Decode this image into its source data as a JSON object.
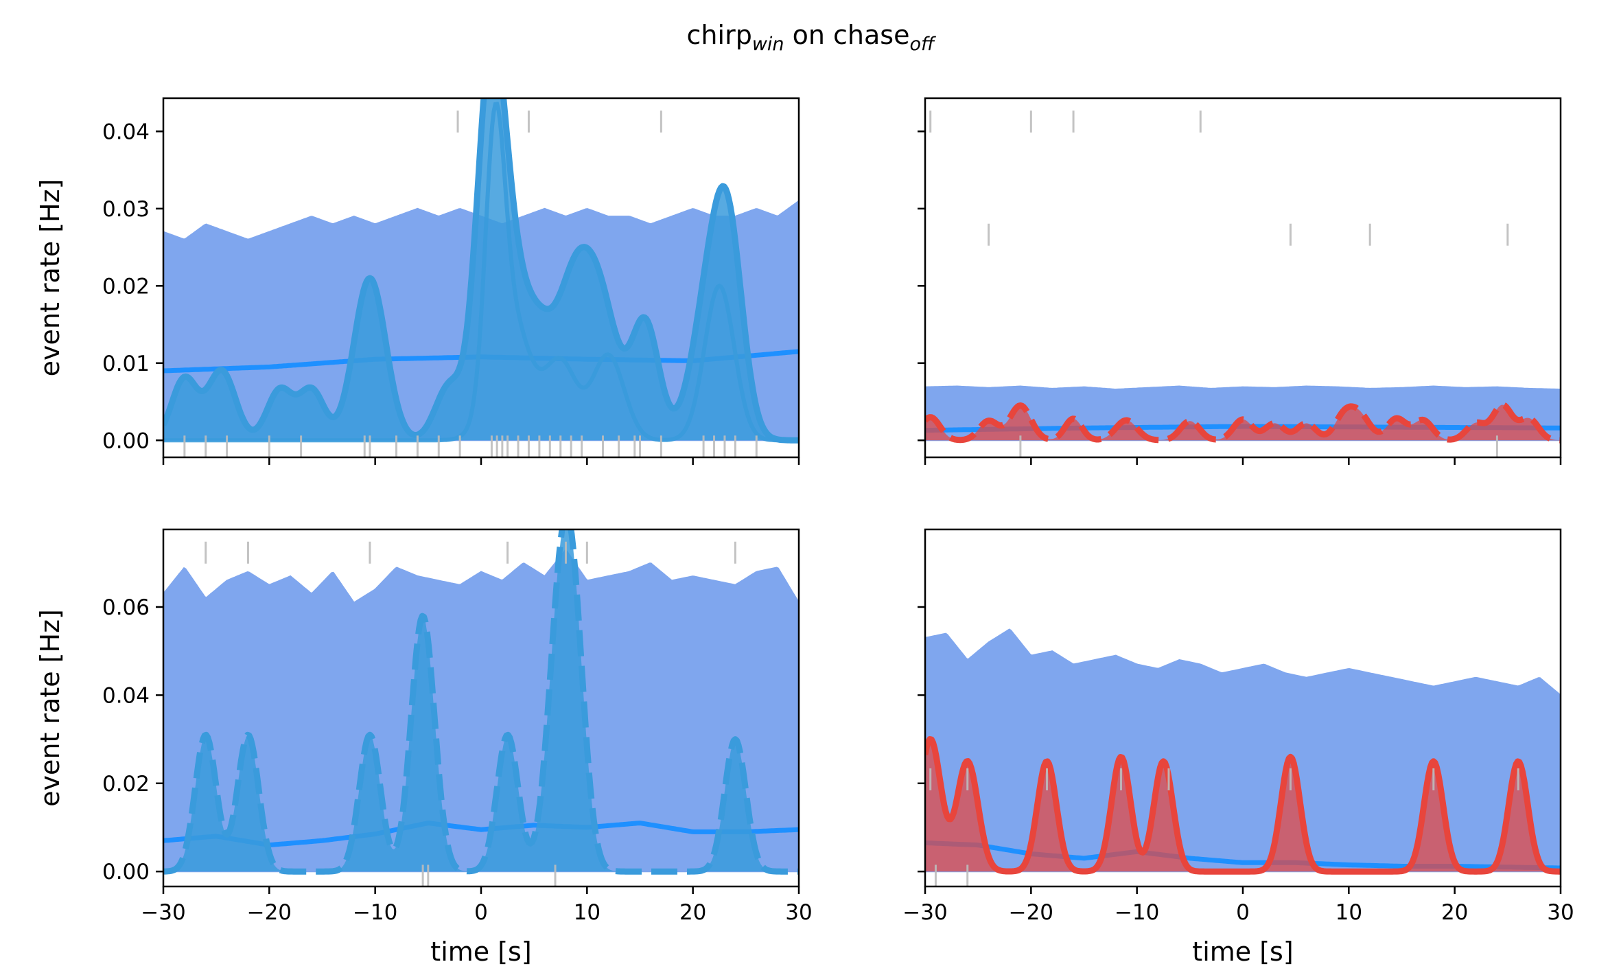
{
  "figure": {
    "title_main_1": "chirp",
    "title_sub_1": "win",
    "title_main_2": " on chase",
    "title_sub_2": "off"
  },
  "colors": {
    "band": "#7fa6ee",
    "mean_line": "#1e90ff",
    "fish1": "#3a9bdc",
    "fish2": "#e8453c",
    "event_tick": "#bdbdbd"
  },
  "chart_data": [
    {
      "type": "area",
      "xlabel": "",
      "ylabel": "event rate [Hz]",
      "xlim": [
        -30,
        30
      ],
      "ylim": [
        -0.0022,
        0.0443
      ],
      "xticks": [
        -30,
        -20,
        -10,
        0,
        10,
        20,
        30
      ],
      "yticks": [
        0.0,
        0.01,
        0.02,
        0.03,
        0.04
      ],
      "ytick_labels": [
        "0.00",
        "0.01",
        "0.02",
        "0.03",
        "0.04"
      ],
      "show_xtick_labels": false,
      "show_ytick_labels": true,
      "band_lower": {
        "x": [
          -30,
          30
        ],
        "y": [
          0.0,
          0.0
        ]
      },
      "band_upper": {
        "x": [
          -30,
          -28,
          -26,
          -24,
          -22,
          -20,
          -18,
          -16,
          -14,
          -12,
          -10,
          -8,
          -6,
          -4,
          -2,
          0,
          2,
          4,
          6,
          8,
          10,
          12,
          14,
          16,
          18,
          20,
          22,
          24,
          26,
          28,
          30
        ],
        "y": [
          0.027,
          0.026,
          0.028,
          0.027,
          0.026,
          0.027,
          0.028,
          0.029,
          0.028,
          0.029,
          0.028,
          0.029,
          0.03,
          0.029,
          0.03,
          0.029,
          0.028,
          0.029,
          0.03,
          0.029,
          0.03,
          0.029,
          0.029,
          0.028,
          0.029,
          0.03,
          0.029,
          0.029,
          0.03,
          0.029,
          0.031
        ]
      },
      "mean": {
        "x": [
          -30,
          -20,
          -10,
          0,
          10,
          20,
          30
        ],
        "y": [
          0.009,
          0.0095,
          0.0105,
          0.0108,
          0.0105,
          0.0103,
          0.0115
        ]
      },
      "bumps": {
        "centers": [
          -28,
          -24.5,
          -19,
          -16,
          -10.5,
          -3,
          0.8,
          2.5,
          5.5,
          8.5,
          11,
          15.5,
          22,
          23.5
        ],
        "widths": [
          1.2,
          1.3,
          1.2,
          1.2,
          1.5,
          1.3,
          1.3,
          1.6,
          1.5,
          1.5,
          1.8,
          1.3,
          1.8,
          1.3
        ],
        "amps": [
          0.008,
          0.009,
          0.0065,
          0.0065,
          0.021,
          0.007,
          0.04,
          0.02,
          0.012,
          0.014,
          0.019,
          0.015,
          0.022,
          0.015
        ]
      },
      "thin_bumps": {
        "centers": [
          1.3,
          2.8,
          7.5,
          12,
          22.5
        ],
        "widths": [
          0.9,
          1.8,
          1.5,
          1.5,
          1.4
        ],
        "amps": [
          0.032,
          0.016,
          0.01,
          0.011,
          0.02
        ]
      },
      "fish_color": "fish1",
      "dashed": false,
      "top_events": [
        -2.2,
        4.5,
        17
      ],
      "mid_events": [],
      "bottom_events": [
        -28,
        -26,
        -24,
        -20,
        -17,
        -11,
        -10.5,
        -8,
        -6,
        -4,
        -2,
        1,
        1.5,
        2,
        2.5,
        3.5,
        4.5,
        5.5,
        6.5,
        7.5,
        8.5,
        9.5,
        11.5,
        13,
        14.5,
        15,
        17,
        21,
        22,
        23,
        24,
        26
      ]
    },
    {
      "type": "area",
      "xlabel": "",
      "ylabel": "",
      "xlim": [
        -30,
        30
      ],
      "ylim": [
        -0.0022,
        0.0443
      ],
      "xticks": [
        -30,
        -20,
        -10,
        0,
        10,
        20,
        30
      ],
      "yticks": [
        0.0,
        0.01,
        0.02,
        0.03,
        0.04
      ],
      "ytick_labels": [
        "0.00",
        "0.01",
        "0.02",
        "0.03",
        "0.04"
      ],
      "show_xtick_labels": false,
      "show_ytick_labels": false,
      "band_lower": {
        "x": [
          -30,
          30
        ],
        "y": [
          0.0,
          0.0
        ]
      },
      "band_upper": {
        "x": [
          -30,
          -27,
          -24,
          -21,
          -18,
          -15,
          -12,
          -9,
          -6,
          -3,
          0,
          3,
          6,
          9,
          12,
          15,
          18,
          21,
          24,
          27,
          30
        ],
        "y": [
          0.0069,
          0.007,
          0.0068,
          0.007,
          0.0067,
          0.0069,
          0.0066,
          0.0068,
          0.007,
          0.0067,
          0.0069,
          0.0068,
          0.007,
          0.0069,
          0.0067,
          0.0068,
          0.007,
          0.0068,
          0.0069,
          0.0067,
          0.0066
        ]
      },
      "mean": {
        "x": [
          -30,
          -15,
          0,
          15,
          30
        ],
        "y": [
          0.0013,
          0.0016,
          0.0018,
          0.0017,
          0.0016
        ]
      },
      "bumps": {
        "centers": [
          -29.5,
          -24,
          -21,
          -16,
          -11,
          -5,
          0,
          3,
          6,
          9.5,
          11,
          14.5,
          17,
          22,
          24.5,
          27
        ],
        "widths": [
          0.9,
          0.9,
          1.0,
          0.8,
          1.0,
          0.9,
          0.9,
          0.9,
          0.9,
          0.9,
          1.0,
          0.9,
          0.9,
          0.9,
          0.9,
          0.9
        ],
        "amps": [
          0.003,
          0.0025,
          0.0045,
          0.0028,
          0.0026,
          0.0025,
          0.0027,
          0.0022,
          0.0022,
          0.0028,
          0.0032,
          0.0028,
          0.0026,
          0.0022,
          0.0045,
          0.0028
        ]
      },
      "thin_bumps": {
        "centers": [],
        "widths": [],
        "amps": []
      },
      "fish_color": "fish2",
      "dashed": true,
      "top_events": [
        -29.5,
        -20,
        -16,
        -4
      ],
      "mid_events": [
        -24,
        4.5,
        12,
        25
      ],
      "bottom_events": [
        -21,
        24
      ]
    },
    {
      "type": "area",
      "xlabel": "time [s]",
      "ylabel": "event rate [Hz]",
      "xlim": [
        -30,
        30
      ],
      "ylim": [
        -0.0034,
        0.0776
      ],
      "xticks": [
        -30,
        -20,
        -10,
        0,
        10,
        20,
        30
      ],
      "yticks": [
        0.0,
        0.02,
        0.04,
        0.06
      ],
      "ytick_labels": [
        "0.00",
        "0.02",
        "0.04",
        "0.06"
      ],
      "xtick_labels": [
        "−30",
        "−20",
        "−10",
        "0",
        "10",
        "20",
        "30"
      ],
      "show_xtick_labels": true,
      "show_ytick_labels": true,
      "band_lower": {
        "x": [
          -30,
          30
        ],
        "y": [
          0.0,
          0.0
        ]
      },
      "band_upper": {
        "x": [
          -30,
          -28,
          -26,
          -24,
          -22,
          -20,
          -18,
          -16,
          -14,
          -12,
          -10,
          -8,
          -6,
          -4,
          -2,
          0,
          2,
          4,
          6,
          8,
          10,
          12,
          14,
          16,
          18,
          20,
          22,
          24,
          26,
          28,
          30
        ],
        "y": [
          0.063,
          0.069,
          0.062,
          0.066,
          0.068,
          0.065,
          0.067,
          0.063,
          0.068,
          0.061,
          0.064,
          0.069,
          0.067,
          0.066,
          0.065,
          0.068,
          0.066,
          0.07,
          0.067,
          0.073,
          0.066,
          0.067,
          0.068,
          0.07,
          0.066,
          0.067,
          0.066,
          0.065,
          0.068,
          0.069,
          0.061
        ]
      },
      "mean": {
        "x": [
          -30,
          -25,
          -20,
          -15,
          -10,
          -5,
          0,
          5,
          10,
          15,
          20,
          25,
          30
        ],
        "y": [
          0.007,
          0.008,
          0.006,
          0.007,
          0.0085,
          0.011,
          0.0095,
          0.0105,
          0.01,
          0.011,
          0.009,
          0.009,
          0.0095
        ]
      },
      "bumps": {
        "centers": [
          -26,
          -22,
          -10.5,
          -5.5,
          2.5,
          7.5,
          8.8,
          24
        ],
        "widths": [
          1.0,
          1.0,
          1.0,
          1.1,
          1.0,
          1.2,
          1.1,
          1.0
        ],
        "amps": [
          0.031,
          0.031,
          0.031,
          0.058,
          0.031,
          0.055,
          0.04,
          0.03
        ]
      },
      "thin_bumps": {
        "centers": [],
        "widths": [],
        "amps": []
      },
      "fish_color": "fish1",
      "dashed": true,
      "top_events": [
        -26,
        -22,
        -10.5,
        2.5,
        8,
        10,
        24
      ],
      "mid_events": [],
      "bottom_events": [
        -5.5,
        -5,
        7
      ]
    },
    {
      "type": "area",
      "xlabel": "time [s]",
      "ylabel": "",
      "xlim": [
        -30,
        30
      ],
      "ylim": [
        -0.0034,
        0.0776
      ],
      "xticks": [
        -30,
        -20,
        -10,
        0,
        10,
        20,
        30
      ],
      "yticks": [
        0.0,
        0.02,
        0.04,
        0.06
      ],
      "ytick_labels": [
        "0.00",
        "0.02",
        "0.04",
        "0.06"
      ],
      "xtick_labels": [
        "−30",
        "−20",
        "−10",
        "0",
        "10",
        "20",
        "30"
      ],
      "show_xtick_labels": true,
      "show_ytick_labels": false,
      "band_lower": {
        "x": [
          -30,
          30
        ],
        "y": [
          0.0,
          0.0
        ]
      },
      "band_upper": {
        "x": [
          -30,
          -28,
          -26,
          -24,
          -22,
          -20,
          -18,
          -16,
          -14,
          -12,
          -10,
          -8,
          -6,
          -4,
          -2,
          0,
          2,
          4,
          6,
          8,
          10,
          12,
          14,
          16,
          18,
          20,
          22,
          24,
          26,
          28,
          30
        ],
        "y": [
          0.053,
          0.054,
          0.048,
          0.052,
          0.055,
          0.049,
          0.05,
          0.047,
          0.048,
          0.049,
          0.047,
          0.046,
          0.048,
          0.047,
          0.045,
          0.046,
          0.047,
          0.045,
          0.044,
          0.045,
          0.046,
          0.045,
          0.044,
          0.043,
          0.042,
          0.043,
          0.044,
          0.043,
          0.042,
          0.044,
          0.04
        ]
      },
      "mean": {
        "x": [
          -30,
          -25,
          -20,
          -15,
          -10,
          -5,
          0,
          5,
          10,
          15,
          20,
          25,
          30
        ],
        "y": [
          0.0065,
          0.006,
          0.004,
          0.003,
          0.0045,
          0.003,
          0.002,
          0.002,
          0.0015,
          0.0012,
          0.0012,
          0.001,
          0.0008
        ]
      },
      "bumps": {
        "centers": [
          -29.5,
          -26,
          -18.5,
          -11.5,
          -7.5,
          4.5,
          18,
          26
        ],
        "widths": [
          1.0,
          1.0,
          0.9,
          0.9,
          0.9,
          0.9,
          0.9,
          0.9
        ],
        "amps": [
          0.03,
          0.025,
          0.025,
          0.026,
          0.025,
          0.026,
          0.025,
          0.025
        ]
      },
      "thin_bumps": {
        "centers": [],
        "widths": [],
        "amps": []
      },
      "fish_color": "fish2",
      "dashed": false,
      "top_events": [],
      "mid_events": [
        -29.5,
        -26,
        -18.5,
        -11.5,
        -7,
        4.5,
        18,
        26
      ],
      "bottom_events": [
        -29,
        -26
      ]
    }
  ]
}
